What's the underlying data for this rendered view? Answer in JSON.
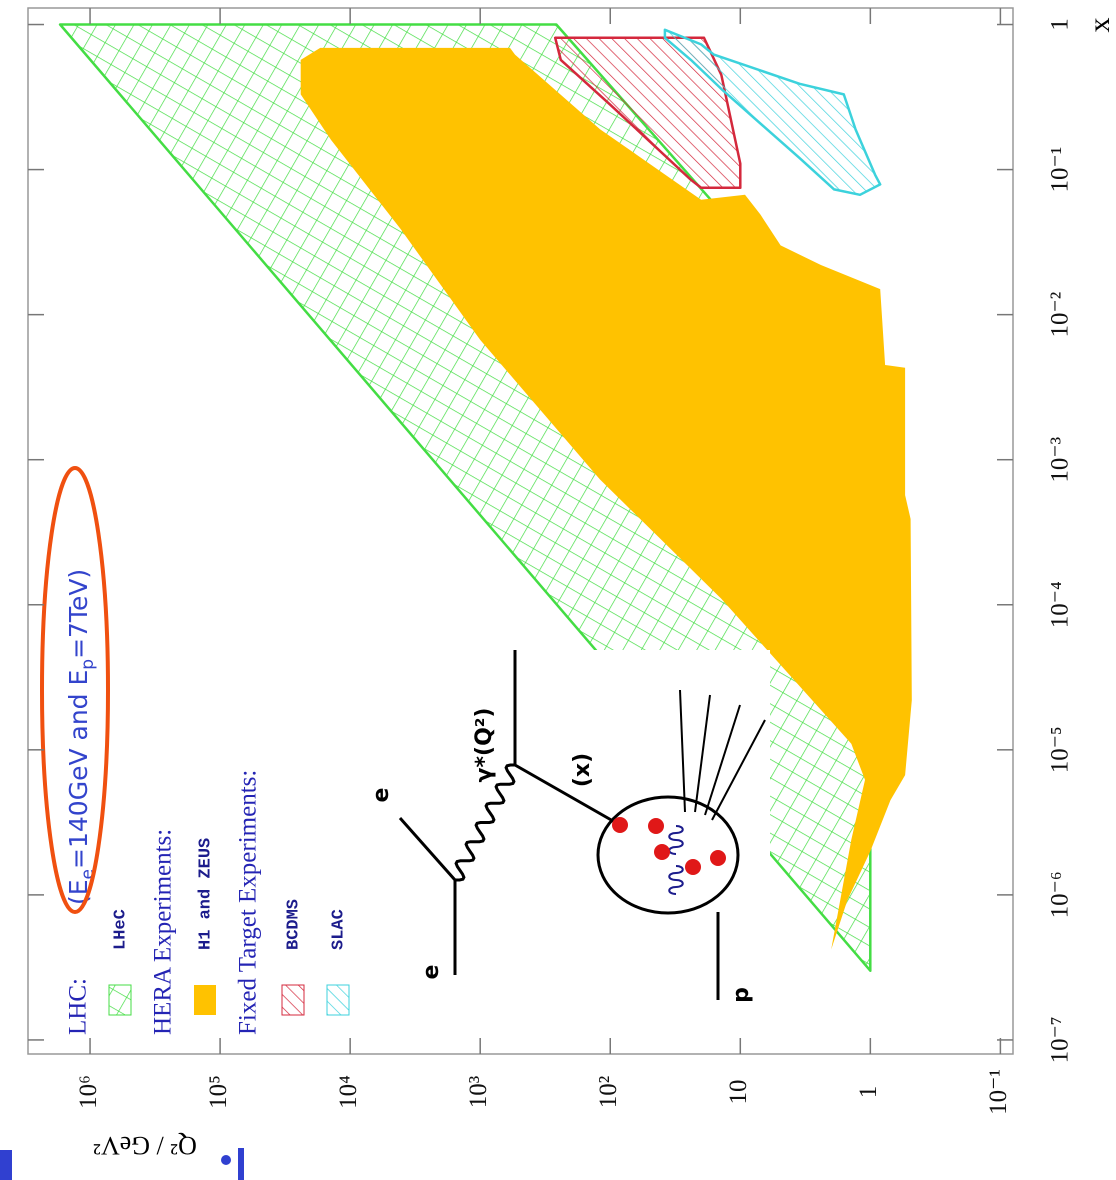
{
  "chart_data": {
    "type": "region",
    "xscale": "log",
    "yscale": "log",
    "xlabel": "x",
    "ylabel": "Q² / GeV²",
    "xlim": [
      8e-08,
      1.3
    ],
    "ylim": [
      0.08,
      3000000
    ],
    "xticks": [
      {
        "value": 1e-07,
        "label": "10⁻⁷"
      },
      {
        "value": 1e-06,
        "label": "10⁻⁶"
      },
      {
        "value": 1e-05,
        "label": "10⁻⁵"
      },
      {
        "value": 0.0001,
        "label": "10⁻⁴"
      },
      {
        "value": 0.001,
        "label": "10⁻³"
      },
      {
        "value": 0.01,
        "label": "10⁻²"
      },
      {
        "value": 0.1,
        "label": "10⁻¹"
      },
      1
    ],
    "yticks": [
      {
        "value": 0.1,
        "label": "10⁻¹"
      },
      1,
      10,
      {
        "value": 100,
        "label": "10²"
      },
      {
        "value": 1000,
        "label": "10³"
      },
      {
        "value": 10000,
        "label": "10⁴"
      },
      {
        "value": 100000,
        "label": "10⁵"
      },
      {
        "value": 1000000,
        "label": "10⁶"
      }
    ],
    "legend_headings": [
      "LHC:",
      "HERA Experiments:",
      "Fixed Target Experiments:"
    ],
    "annotation": [
      "(E",
      "e",
      "=140GeV and E",
      "p",
      "=7TeV)"
    ],
    "diagram_labels": [
      "e",
      "e",
      "γ*(Q²)",
      "(x)",
      "p"
    ],
    "series": [
      {
        "name": "LHeC",
        "color": "#44dd44",
        "fill": "crosshatch",
        "outline": true,
        "x": [
          1,
          1,
          0.0035,
          3e-07
        ],
        "y": [
          1700000,
          260,
          1,
          1
        ]
      },
      {
        "name": "H1 and ZEUS",
        "color": "#ffc200",
        "fill": "solid",
        "outline": false,
        "x": [
          0.33,
          0.57,
          0.69,
          0.69,
          0.62,
          0.19,
          0.062,
          0.067,
          0.049,
          0.03,
          0.022,
          0.015,
          0.0045,
          0.0043,
          0.00057,
          0.00039,
          2.2e-05,
          6.7e-06,
          4.5e-06,
          2e-06,
          9.2e-07,
          4.2e-07,
          2.4e-06,
          6.2e-06,
          1.1e-05,
          0.00011,
          0.00073,
          0.0067,
          0.039,
          0.16
        ],
        "y": [
          24000,
          24000,
          17000,
          590,
          540,
          120,
          20,
          9.2,
          7,
          4.9,
          2.4,
          0.84,
          0.77,
          0.54,
          0.54,
          0.49,
          0.48,
          0.54,
          0.7,
          1,
          1.5,
          2,
          1.4,
          1.1,
          1.4,
          14,
          120,
          1000,
          4100,
          14000
        ]
      },
      {
        "name": "BCDMS",
        "color": "#d4283c",
        "fill": "hatch",
        "outline": true,
        "x": [
          0.81,
          0.81,
          0.45,
          0.11,
          0.075,
          0.075,
          0.085,
          0.28,
          0.57
        ],
        "y": [
          265,
          19,
          14,
          10,
          10,
          20,
          24,
          100,
          240
        ]
      },
      {
        "name": "SLAC",
        "color": "#3cd2dc",
        "fill": "hatch",
        "outline": true,
        "x": [
          0.92,
          0.73,
          0.62,
          0.39,
          0.33,
          0.19,
          0.092,
          0.079,
          0.067,
          0.073,
          0.12,
          0.24,
          0.36,
          0.57,
          0.81
        ],
        "y": [
          38,
          20,
          16,
          3.5,
          1.6,
          1.3,
          0.92,
          0.84,
          1.2,
          1.9,
          3.5,
          8.4,
          14,
          24,
          38
        ]
      }
    ]
  }
}
